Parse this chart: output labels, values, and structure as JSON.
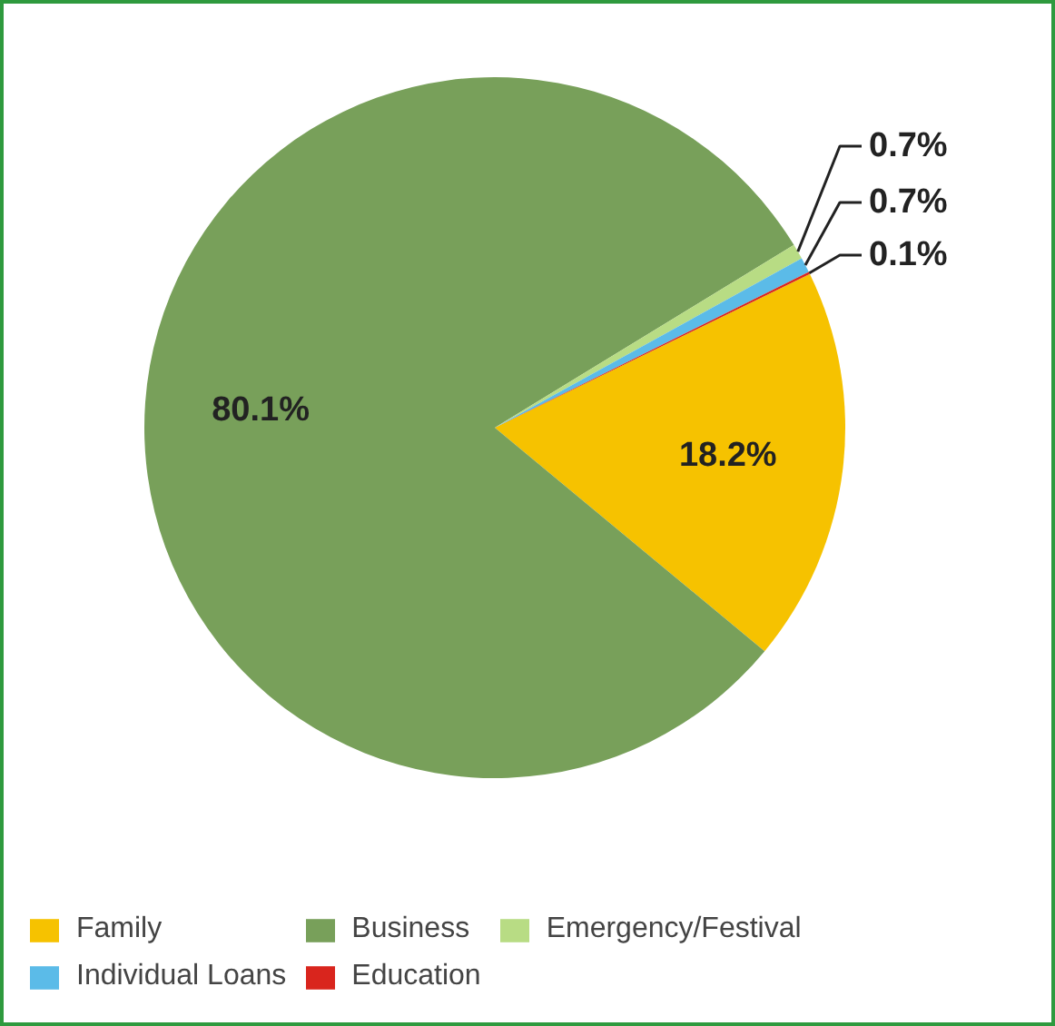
{
  "chart_data": {
    "type": "pie",
    "categories": [
      "Family",
      "Business",
      "Emergency/Festival",
      "Individual Loans",
      "Education"
    ],
    "values": [
      18.2,
      80.1,
      0.7,
      0.7,
      0.1
    ],
    "colors": [
      "#f6c200",
      "#78a05a",
      "#b8dc84",
      "#5bbbe8",
      "#d9251d"
    ],
    "value_labels": [
      "18.2%",
      "80.1%",
      "0.7%",
      "0.7%",
      "0.1%"
    ],
    "legend": "bottom"
  }
}
